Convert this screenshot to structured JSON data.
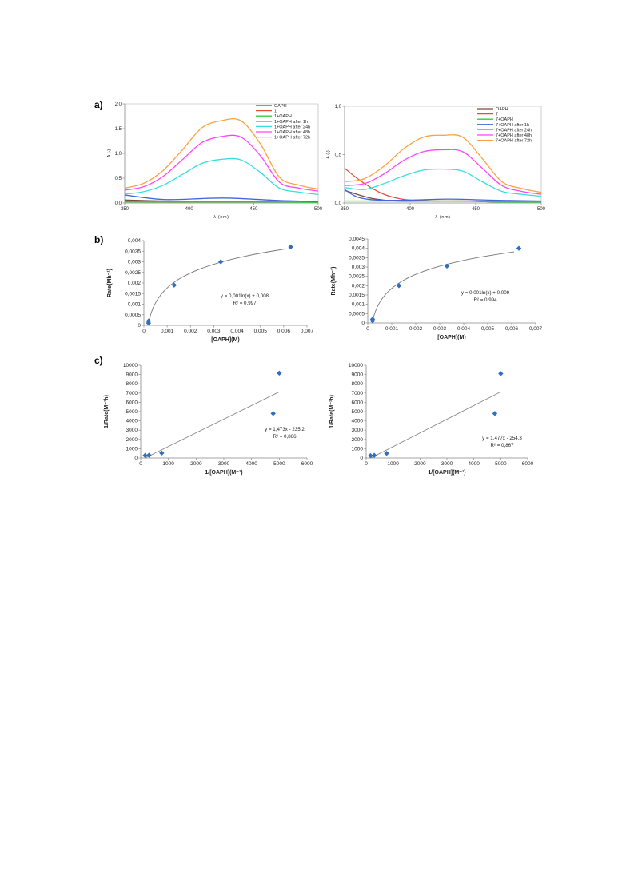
{
  "panel_labels": {
    "a": "a)",
    "b": "b)",
    "c": "c)"
  },
  "chart_data": [
    {
      "id": "a1",
      "type": "line",
      "xlabel": "λ (nm)",
      "ylabel": "A (-)",
      "xlim": [
        350,
        500
      ],
      "ylim": [
        0,
        2.0
      ],
      "xticks": [
        "350",
        "400",
        "450",
        "500"
      ],
      "yticks": [
        "0,0",
        "0,5",
        "1,0",
        "1,5",
        "2,0"
      ],
      "legend": "top-right",
      "series": [
        {
          "name": "OAPH",
          "color": "#7a4a3a",
          "x": [
            350,
            380,
            410,
            440,
            470,
            500
          ],
          "y": [
            0.06,
            0.04,
            0.03,
            0.03,
            0.02,
            0.02
          ]
        },
        {
          "name": "1",
          "color": "#e74c3c",
          "x": [
            350,
            380,
            410,
            440,
            470,
            500
          ],
          "y": [
            0.03,
            0.02,
            0.02,
            0.02,
            0.02,
            0.02
          ]
        },
        {
          "name": "1+OAPH",
          "color": "#2ecc40",
          "x": [
            350,
            380,
            410,
            440,
            470,
            500
          ],
          "y": [
            0.02,
            0.02,
            0.02,
            0.02,
            0.02,
            0.01
          ]
        },
        {
          "name": "1+OAPH after 1h",
          "color": "#4466dd",
          "x": [
            350,
            380,
            410,
            425,
            440,
            470,
            500
          ],
          "y": [
            0.16,
            0.07,
            0.09,
            0.1,
            0.09,
            0.05,
            0.03
          ]
        },
        {
          "name": "1+OAPH after 24h",
          "color": "#33e0e0",
          "x": [
            350,
            365,
            380,
            395,
            410,
            425,
            440,
            455,
            470,
            485,
            500
          ],
          "y": [
            0.18,
            0.23,
            0.36,
            0.58,
            0.8,
            0.88,
            0.87,
            0.62,
            0.3,
            0.22,
            0.17
          ]
        },
        {
          "name": "1+OAPH after 48h",
          "color": "#ff44ff",
          "x": [
            350,
            365,
            380,
            395,
            410,
            425,
            440,
            455,
            470,
            485,
            500
          ],
          "y": [
            0.26,
            0.33,
            0.54,
            0.88,
            1.22,
            1.34,
            1.33,
            0.96,
            0.42,
            0.3,
            0.24
          ]
        },
        {
          "name": "1+OAPH after 72h",
          "color": "#ffa040",
          "x": [
            350,
            365,
            380,
            395,
            410,
            425,
            440,
            455,
            470,
            485,
            500
          ],
          "y": [
            0.3,
            0.4,
            0.66,
            1.08,
            1.52,
            1.66,
            1.66,
            1.2,
            0.52,
            0.36,
            0.28
          ]
        }
      ]
    },
    {
      "id": "a2",
      "type": "line",
      "xlabel": "λ (nm)",
      "ylabel": "A (-)",
      "xlim": [
        350,
        500
      ],
      "ylim": [
        0,
        1.0
      ],
      "xticks": [
        "350",
        "400",
        "450",
        "500"
      ],
      "yticks": [
        "0,0",
        "0,5",
        "1,0"
      ],
      "legend": "top-right",
      "series": [
        {
          "name": "OAPH",
          "color": "#7a4a3a",
          "x": [
            350,
            370,
            390,
            410,
            440,
            470,
            500
          ],
          "y": [
            0.13,
            0.05,
            0.02,
            0.02,
            0.02,
            0.01,
            0.01
          ]
        },
        {
          "name": "7",
          "color": "#e74c3c",
          "x": [
            350,
            360,
            370,
            380,
            390,
            400,
            420,
            450,
            500
          ],
          "y": [
            0.36,
            0.25,
            0.16,
            0.09,
            0.05,
            0.03,
            0.02,
            0.02,
            0.01
          ]
        },
        {
          "name": "7+OAPH",
          "color": "#2ecc40",
          "x": [
            350,
            380,
            410,
            440,
            470,
            500
          ],
          "y": [
            0.02,
            0.02,
            0.02,
            0.02,
            0.01,
            0.01
          ]
        },
        {
          "name": "7+OAPH after 1h",
          "color": "#4466dd",
          "x": [
            350,
            360,
            375,
            400,
            430,
            460,
            500
          ],
          "y": [
            0.14,
            0.06,
            0.03,
            0.03,
            0.04,
            0.03,
            0.02
          ]
        },
        {
          "name": "7+OAPH after 24h",
          "color": "#33e0e0",
          "x": [
            350,
            365,
            380,
            395,
            410,
            425,
            440,
            455,
            470,
            485,
            500
          ],
          "y": [
            0.16,
            0.14,
            0.2,
            0.28,
            0.34,
            0.35,
            0.33,
            0.22,
            0.12,
            0.09,
            0.07
          ]
        },
        {
          "name": "7+OAPH after 48h",
          "color": "#ff44ff",
          "x": [
            350,
            365,
            380,
            395,
            410,
            425,
            440,
            455,
            470,
            485,
            500
          ],
          "y": [
            0.18,
            0.2,
            0.3,
            0.44,
            0.53,
            0.55,
            0.53,
            0.36,
            0.18,
            0.12,
            0.09
          ]
        },
        {
          "name": "7+OAPH after 72h",
          "color": "#ffa040",
          "x": [
            350,
            365,
            380,
            395,
            410,
            425,
            440,
            455,
            470,
            485,
            500
          ],
          "y": [
            0.22,
            0.25,
            0.38,
            0.56,
            0.68,
            0.7,
            0.68,
            0.46,
            0.22,
            0.15,
            0.11
          ]
        }
      ]
    },
    {
      "id": "b1",
      "type": "scatter",
      "xlabel": "[OAPH](M)",
      "ylabel": "Rate(Mh⁻¹)",
      "xlim": [
        0,
        0.007
      ],
      "ylim": [
        0,
        0.004
      ],
      "xticks": [
        "0",
        "0,001",
        "0,002",
        "0,003",
        "0,004",
        "0,005",
        "0,006",
        "0,007"
      ],
      "yticks": [
        "0",
        "0,0005",
        "0,001",
        "0,0015",
        "0,002",
        "0,0025",
        "0,003",
        "0,0035",
        "0,004"
      ],
      "points": {
        "x": [
          0.0002,
          0.0002,
          0.0013,
          0.0033,
          0.0063
        ],
        "y": [
          0.00011,
          0.0002,
          0.0019,
          0.003,
          0.0037
        ]
      },
      "trend": {
        "kind": "log",
        "x_from": 0.00018,
        "x_to": 0.0061
      },
      "equation": "y = 0,001ln(x) + 0,008",
      "r2": "R² = 0,997"
    },
    {
      "id": "b2",
      "type": "scatter",
      "xlabel": "[OAPH](M)",
      "ylabel": "Rate(Mh⁻¹)",
      "xlim": [
        0,
        0.007
      ],
      "ylim": [
        0,
        0.0045
      ],
      "xticks": [
        "0",
        "0,001",
        "0,002",
        "0,003",
        "0,004",
        "0,005",
        "0,006",
        "0,007"
      ],
      "yticks": [
        "0",
        "0,0005",
        "0,001",
        "0,0015",
        "0,002",
        "0,0025",
        "0,003",
        "0,0035",
        "0,004",
        "0,0045"
      ],
      "points": {
        "x": [
          0.0002,
          0.0002,
          0.0013,
          0.0033,
          0.0063
        ],
        "y": [
          0.00011,
          0.0002,
          0.002,
          0.00305,
          0.004
        ]
      },
      "trend": {
        "kind": "log",
        "x_from": 0.00018,
        "x_to": 0.0061
      },
      "equation": "y = 0,001ln(x) + 0,009",
      "r2": "R² = 0,994"
    },
    {
      "id": "c1",
      "type": "scatter",
      "xlabel": "1/[OAPH](M⁻¹)",
      "ylabel": "1/Rate(M⁻¹h)",
      "xlim": [
        0,
        6000
      ],
      "ylim": [
        0,
        10000
      ],
      "xticks": [
        "0",
        "1000",
        "2000",
        "3000",
        "4000",
        "5000",
        "6000"
      ],
      "yticks": [
        "0",
        "1000",
        "2000",
        "3000",
        "4000",
        "5000",
        "6000",
        "7000",
        "8000",
        "9000",
        "10000"
      ],
      "points": {
        "x": [
          160,
          300,
          760,
          4780,
          5000
        ],
        "y": [
          270,
          300,
          530,
          4800,
          9150
        ]
      },
      "trend": {
        "kind": "linear",
        "slope": 1.473,
        "intercept": -235.2,
        "x_from": 160,
        "x_to": 5000
      },
      "equation": "y = 1,473x - 235,2",
      "r2": "R² = 0,866"
    },
    {
      "id": "c2",
      "type": "scatter",
      "xlabel": "1/[OAPH](M⁻¹)",
      "ylabel": "1/Rate(M⁻¹h)",
      "xlim": [
        0,
        6000
      ],
      "ylim": [
        0,
        10000
      ],
      "xticks": [
        "0",
        "1000",
        "2000",
        "3000",
        "4000",
        "5000",
        "6000"
      ],
      "yticks": [
        "0",
        "1000",
        "2000",
        "3000",
        "4000",
        "5000",
        "6000",
        "7000",
        "8000",
        "9000",
        "10000"
      ],
      "points": {
        "x": [
          160,
          300,
          760,
          4780,
          5000
        ],
        "y": [
          250,
          280,
          500,
          4800,
          9100
        ]
      },
      "trend": {
        "kind": "linear",
        "slope": 1.477,
        "intercept": -254.3,
        "x_from": 160,
        "x_to": 5000
      },
      "equation": "y = 1,477x - 254,3",
      "r2": "R² = 0,867"
    }
  ]
}
